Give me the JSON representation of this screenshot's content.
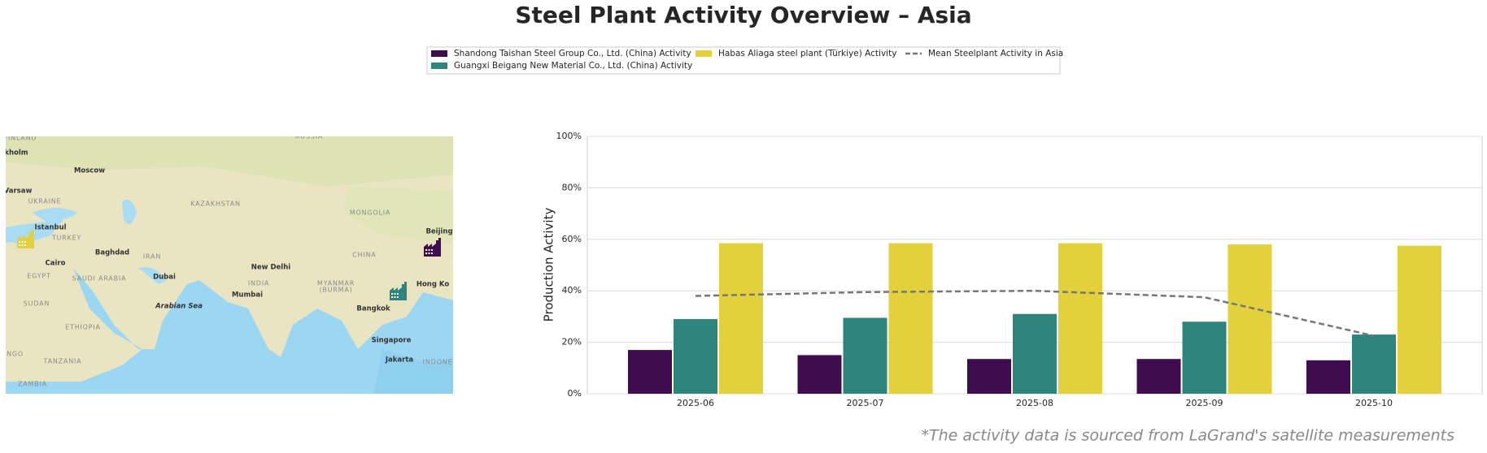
{
  "chart_data": {
    "type": "bar",
    "title": "Steel Plant Activity Overview – Asia",
    "ylabel": "Production Activity",
    "categories": [
      "2025-06",
      "2025-07",
      "2025-08",
      "2025-09",
      "2025-10"
    ],
    "series": [
      {
        "name": "Shandong Taishan Steel Group Co., Ltd. (China) Activity",
        "color": "#3f0d4d",
        "values": [
          17,
          15,
          13.5,
          13.5,
          13
        ]
      },
      {
        "name": "Guangxi Beigang New Material Co., Ltd. (China) Activity",
        "color": "#2e857e",
        "values": [
          29,
          29.5,
          31,
          28,
          23
        ]
      },
      {
        "name": "Habas Aliaga steel plant (Türkiye) Activity",
        "color": "#e2d13b",
        "values": [
          58.5,
          58.5,
          58.5,
          58,
          57.5
        ]
      },
      {
        "name": "Mean Steelplant Activity in Asia",
        "color": "#777777",
        "type": "line",
        "dashed": true,
        "values": [
          38,
          39.5,
          40,
          37.5,
          22.5
        ]
      }
    ],
    "ylim": [
      0,
      100
    ],
    "yticks": [
      {
        "value": 0,
        "label": "0%"
      },
      {
        "value": 20,
        "label": "20%"
      },
      {
        "value": 40,
        "label": "40%"
      },
      {
        "value": 60,
        "label": "60%"
      },
      {
        "value": 80,
        "label": "80%"
      },
      {
        "value": 100,
        "label": "100%"
      }
    ],
    "grid": true,
    "legend": "upper center"
  },
  "map": {
    "labels": [
      "FINLAND",
      "RUSSIA",
      "kholm",
      "Moscow",
      "Varsaw",
      "UKRAINE",
      "KAZAKHSTAN",
      "MONGOLIA",
      "Istanbul",
      "Beijing",
      "TURKEY",
      "Baghdad",
      "IRAN",
      "CHINA",
      "Cairo",
      "New Delhi",
      "EGYPT",
      "SAUDI ARABIA",
      "Dubai",
      "INDIA",
      "MYANMAR",
      "(BURMA)",
      "Hong Ko",
      "SUDAN",
      "Mumbai",
      "Arabian Sea",
      "Bangkok",
      "ETHIOPIA",
      "Singapore",
      "ONGO",
      "TANZANIA",
      "Jakarta",
      "INDONE",
      "ZAMBIA"
    ]
  },
  "footnote": "*The activity data is sourced from LaGrand's satellite measurements"
}
